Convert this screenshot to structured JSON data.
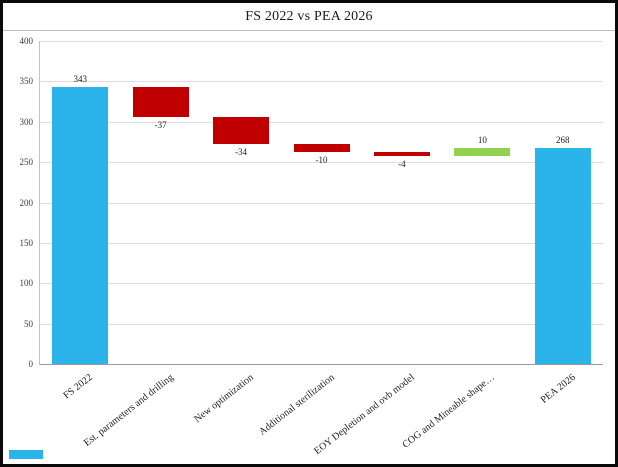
{
  "title": "FS 2022 vs PEA 2026",
  "chart_data": {
    "type": "bar",
    "subtype": "waterfall",
    "title": "FS 2022 vs PEA 2026",
    "categories": [
      "FS 2022",
      "Est. parameters and drilling",
      "New optimization",
      "Additional sterilization",
      "EOY Depletion and ovb model",
      "COG and Mineable shape…",
      "PEA 2026"
    ],
    "values": [
      343,
      -37,
      -34,
      -10,
      -4,
      10,
      268
    ],
    "bar_types": [
      "total",
      "delta",
      "delta",
      "delta",
      "delta",
      "delta",
      "total"
    ],
    "data_labels": [
      "343",
      "-37",
      "-34",
      "-10",
      "-4",
      "10",
      "268"
    ],
    "cumulative_segments": [
      {
        "from": 0,
        "to": 343
      },
      {
        "from": 343,
        "to": 306
      },
      {
        "from": 306,
        "to": 272
      },
      {
        "from": 272,
        "to": 262
      },
      {
        "from": 262,
        "to": 258
      },
      {
        "from": 258,
        "to": 268
      },
      {
        "from": 0,
        "to": 268
      }
    ],
    "xlabel": "",
    "ylabel": "",
    "ylim": [
      0,
      400
    ],
    "yticks": [
      0,
      50,
      100,
      150,
      200,
      250,
      300,
      350,
      400
    ],
    "grid": true,
    "legend": "none",
    "colors": {
      "total": "#2bb4e9",
      "decrease": "#c00000",
      "increase": "#92d050",
      "gridline": "#dedede",
      "axis": "#9a9a9a",
      "corner_mark": "#2bb4e9"
    }
  }
}
